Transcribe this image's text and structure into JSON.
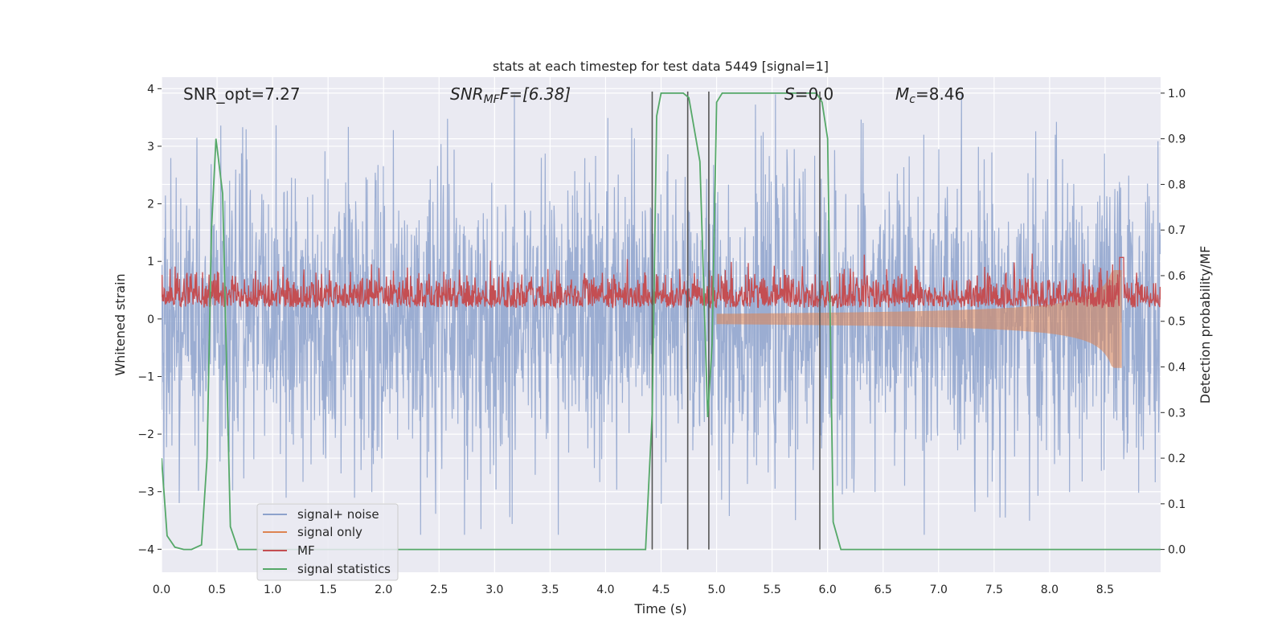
{
  "chart_data": {
    "type": "line",
    "title": "stats at each timestep for test data 5449 [signal=1]",
    "xlabel": "Time (s)",
    "ylabel_left": "Whitened strain",
    "ylabel_right": "Detection probability/MF",
    "xlim": [
      0.0,
      9.0
    ],
    "ylim_left": [
      -4.4,
      4.2
    ],
    "ylim_right": [
      -0.05,
      1.035
    ],
    "x_ticks": [
      "0.0",
      "0.5",
      "1.0",
      "1.5",
      "2.0",
      "2.5",
      "3.0",
      "3.5",
      "4.0",
      "4.5",
      "5.0",
      "5.5",
      "6.0",
      "6.5",
      "7.0",
      "7.5",
      "8.0",
      "8.5"
    ],
    "y_ticks_left": [
      "4",
      "3",
      "2",
      "1",
      "0",
      "−1",
      "−2",
      "−3",
      "−4"
    ],
    "y_ticks_right": [
      "1.0",
      "0.9",
      "0.8",
      "0.7",
      "0.6",
      "0.5",
      "0.4",
      "0.3",
      "0.2",
      "0.1",
      "0.0"
    ],
    "annotations": {
      "snr_opt": "SNR_opt=7.27",
      "snr_mf_main": "SNR",
      "snr_mf_sub": "MF",
      "snr_mf_value": "F=[6.38]",
      "s_label": "S",
      "s_value": "=0.0",
      "mc_main": "M",
      "mc_sub": "c",
      "mc_value": "=8.46"
    },
    "legend": {
      "location": "lower-left",
      "entries": [
        "signal+ noise",
        "signal only",
        "MF",
        "signal statistics"
      ]
    },
    "colors": {
      "signal_noise": "#8da2cc",
      "signal_only": "#dd8452",
      "mf": "#c44e52",
      "stat": "#55a868",
      "vlines": "#555555",
      "background": "#eaeaf2",
      "grid": "#ffffff"
    },
    "noise_amplitude_std": 1.0,
    "mf_baseline": 0.5,
    "chirp_end_time": 8.65,
    "detection_vlines_s": [
      4.42,
      4.74,
      4.93,
      5.93
    ],
    "signal_statistics": {
      "t": [
        0.0,
        0.05,
        0.12,
        0.2,
        0.27,
        0.36,
        0.41,
        0.45,
        0.49,
        0.55,
        0.62,
        0.69,
        4.36,
        4.42,
        4.46,
        4.5,
        4.7,
        4.75,
        4.85,
        4.92,
        4.96,
        5.0,
        5.05,
        5.9,
        5.95,
        6.0,
        6.05,
        6.12,
        6.3,
        9.0
      ],
      "p": [
        0.2,
        0.03,
        0.005,
        0.0,
        0.0,
        0.01,
        0.2,
        0.7,
        0.9,
        0.78,
        0.05,
        0.0,
        0.0,
        0.3,
        0.95,
        1.0,
        1.0,
        0.99,
        0.85,
        0.29,
        0.45,
        0.98,
        1.0,
        1.0,
        0.98,
        0.9,
        0.06,
        0.0,
        0.0,
        0.0
      ]
    }
  }
}
